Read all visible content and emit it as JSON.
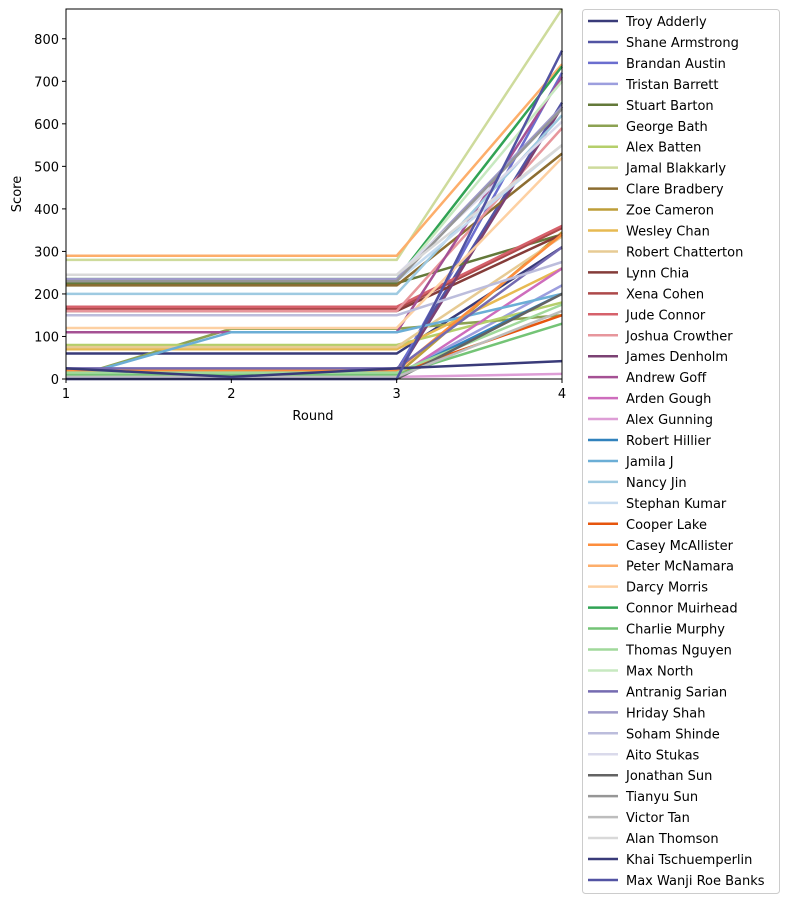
{
  "chart_data": {
    "type": "line",
    "xlabel": "Round",
    "ylabel": "Score",
    "x": [
      1,
      2,
      3,
      4
    ],
    "xticks": [
      "1",
      "2",
      "3",
      "4"
    ],
    "yticks": [
      "0",
      "100",
      "200",
      "300",
      "400",
      "500",
      "600",
      "700",
      "800"
    ],
    "xlim": [
      1,
      4
    ],
    "ylim": [
      0,
      870
    ],
    "grid": false,
    "legend_position": "outside-right",
    "series": [
      {
        "name": "Troy Adderly",
        "color": "#393b79",
        "values": [
          60,
          60,
          60,
          310
        ]
      },
      {
        "name": "Shane Armstrong",
        "color": "#5254a3",
        "values": [
          20,
          20,
          20,
          650
        ]
      },
      {
        "name": "Brandan Austin",
        "color": "#6b6ecf",
        "values": [
          15,
          15,
          15,
          720
        ]
      },
      {
        "name": "Tristan Barrett",
        "color": "#9c9ede",
        "values": [
          10,
          10,
          10,
          220
        ]
      },
      {
        "name": "Stuart Barton",
        "color": "#637939",
        "values": [
          225,
          225,
          225,
          340
        ]
      },
      {
        "name": "George Bath",
        "color": "#8ca252",
        "values": [
          0,
          118,
          118,
          150
        ]
      },
      {
        "name": "Alex Batten",
        "color": "#b5cf6b",
        "values": [
          80,
          80,
          80,
          180
        ]
      },
      {
        "name": "Jamal Blakkarly",
        "color": "#cedb9c",
        "values": [
          280,
          280,
          280,
          870
        ]
      },
      {
        "name": "Clare Bradbery",
        "color": "#8c6d31",
        "values": [
          220,
          220,
          220,
          530
        ]
      },
      {
        "name": "Zoe Cameron",
        "color": "#bd9e39",
        "values": [
          10,
          10,
          10,
          345
        ]
      },
      {
        "name": "Wesley Chan",
        "color": "#e7ba52",
        "values": [
          70,
          70,
          70,
          260
        ]
      },
      {
        "name": "Robert Chatterton",
        "color": "#e7cb94",
        "values": [
          75,
          75,
          75,
          335
        ]
      },
      {
        "name": "Lynn Chia",
        "color": "#843c39",
        "values": [
          160,
          160,
          160,
          340
        ]
      },
      {
        "name": "Xena Cohen",
        "color": "#ad494a",
        "values": [
          165,
          165,
          165,
          355
        ]
      },
      {
        "name": "Jude Connor",
        "color": "#d6616b",
        "values": [
          170,
          170,
          170,
          360
        ]
      },
      {
        "name": "Joshua Crowther",
        "color": "#e7969c",
        "values": [
          160,
          160,
          160,
          590
        ]
      },
      {
        "name": "James Denholm",
        "color": "#7b4173",
        "values": [
          10,
          10,
          10,
          640
        ]
      },
      {
        "name": "Andrew Goff",
        "color": "#a55194",
        "values": [
          110,
          110,
          110,
          710
        ]
      },
      {
        "name": "Arden Gough",
        "color": "#ce6dbd",
        "values": [
          5,
          5,
          5,
          260
        ]
      },
      {
        "name": "Alex Gunning",
        "color": "#de9ed6",
        "values": [
          5,
          5,
          5,
          12
        ]
      },
      {
        "name": "Robert Hillier",
        "color": "#3182bd",
        "values": [
          10,
          10,
          10,
          200
        ]
      },
      {
        "name": "Jamila J",
        "color": "#6baed6",
        "values": [
          0,
          110,
          110,
          200
        ]
      },
      {
        "name": "Nancy Jin",
        "color": "#9ecae1",
        "values": [
          200,
          200,
          200,
          620
        ]
      },
      {
        "name": "Stephan Kumar",
        "color": "#c6dbef",
        "values": [
          230,
          230,
          230,
          550
        ]
      },
      {
        "name": "Cooper Lake",
        "color": "#e6550d",
        "values": [
          15,
          15,
          15,
          150
        ]
      },
      {
        "name": "Casey McAllister",
        "color": "#fd8d3c",
        "values": [
          20,
          20,
          20,
          340
        ]
      },
      {
        "name": "Peter McNamara",
        "color": "#fdae6b",
        "values": [
          290,
          290,
          290,
          740
        ]
      },
      {
        "name": "Darcy Morris",
        "color": "#fdd0a2",
        "values": [
          120,
          120,
          120,
          520
        ]
      },
      {
        "name": "Connor Muirhead",
        "color": "#31a354",
        "values": [
          235,
          235,
          235,
          735
        ]
      },
      {
        "name": "Charlie Murphy",
        "color": "#74c476",
        "values": [
          10,
          10,
          10,
          130
        ]
      },
      {
        "name": "Thomas Nguyen",
        "color": "#a1d99b",
        "values": [
          15,
          15,
          15,
          175
        ]
      },
      {
        "name": "Max North",
        "color": "#c7e9c0",
        "values": [
          235,
          235,
          235,
          700
        ]
      },
      {
        "name": "Antranig Sarian",
        "color": "#756bb1",
        "values": [
          25,
          25,
          25,
          310
        ]
      },
      {
        "name": "Hriday Shah",
        "color": "#9e9ac8",
        "values": [
          235,
          235,
          235,
          640
        ]
      },
      {
        "name": "Soham Shinde",
        "color": "#bcbddc",
        "values": [
          150,
          150,
          150,
          275
        ]
      },
      {
        "name": "Aito Stukas",
        "color": "#dadaeb",
        "values": [
          245,
          245,
          245,
          605
        ]
      },
      {
        "name": "Jonathan Sun",
        "color": "#636363",
        "values": [
          0,
          0,
          0,
          200
        ]
      },
      {
        "name": "Tianyu Sun",
        "color": "#969696",
        "values": [
          230,
          230,
          230,
          635
        ]
      },
      {
        "name": "Victor Tan",
        "color": "#bdbdbd",
        "values": [
          5,
          5,
          5,
          160
        ]
      },
      {
        "name": "Alan Thomson",
        "color": "#d9d9d9",
        "values": [
          245,
          245,
          245,
          550
        ]
      },
      {
        "name": "Khai Tschuemperlin",
        "color": "#393b79",
        "values": [
          25,
          5,
          25,
          42
        ]
      },
      {
        "name": "Max Wanji Roe Banks",
        "color": "#5254a3",
        "values": [
          0,
          0,
          0,
          772
        ]
      }
    ]
  }
}
